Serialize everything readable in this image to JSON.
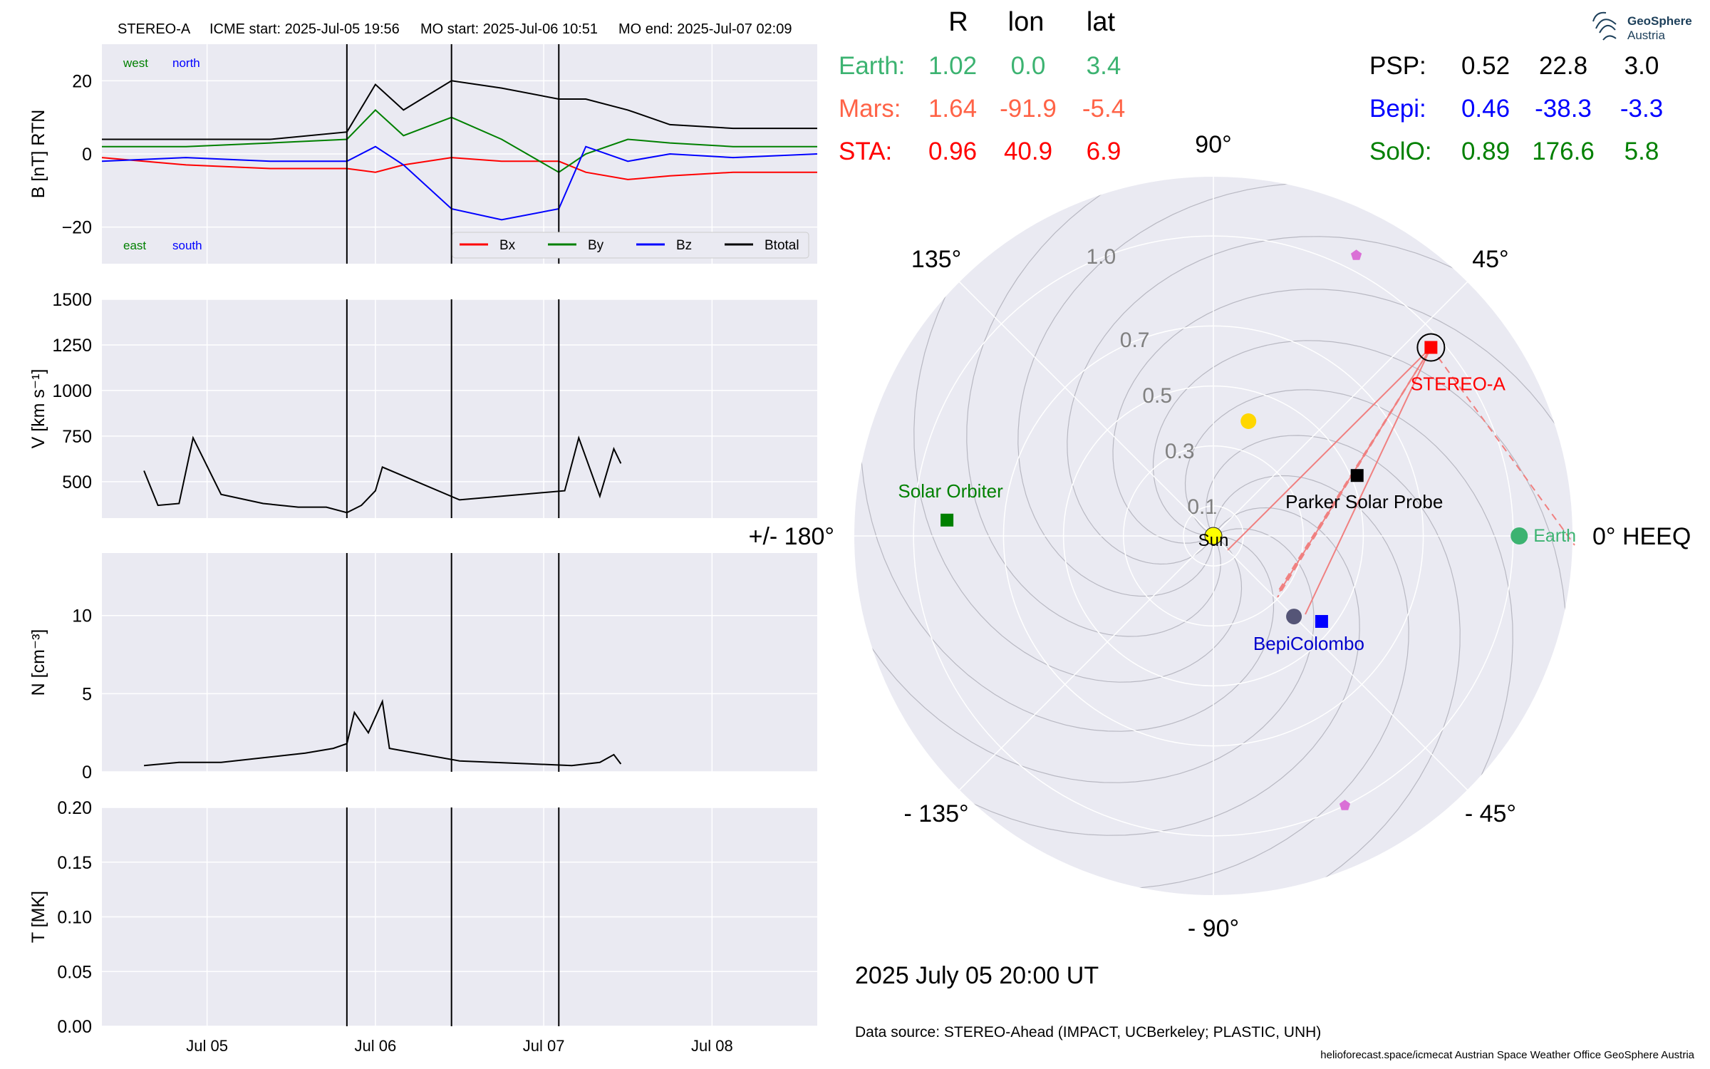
{
  "header": {
    "spacecraft": "STEREO-A",
    "icme_start": "ICME start: 2025-Jul-05 19:56",
    "mo_start": "MO start: 2025-Jul-06 10:51",
    "mo_end": "MO end: 2025-Jul-07 02:09"
  },
  "logo": {
    "line1": "GeoSphere",
    "line2": "Austria"
  },
  "footer": {
    "datetime": "2025 July 05  20:00 UT",
    "source": "Data source: STEREO-Ahead (IMPACT, UCBerkeley; PLASTIC, UNH)",
    "credits": "helioforecast.space/icmecat   Austrian Space Weather Office   GeoSphere Austria"
  },
  "positions": {
    "headers": [
      "R",
      "lon",
      "lat"
    ],
    "bodies": [
      {
        "label": "Earth:",
        "R": "1.02",
        "lon": "0.0",
        "lat": "3.4",
        "color": "#3cb371"
      },
      {
        "label": "Mars:",
        "R": "1.64",
        "lon": "-91.9",
        "lat": "-5.4",
        "color": "#ff6347"
      },
      {
        "label": "STA:",
        "R": "0.96",
        "lon": "40.9",
        "lat": "6.9",
        "color": "#ff0000"
      },
      {
        "label": "PSP:",
        "R": "0.52",
        "lon": "22.8",
        "lat": "3.0",
        "color": "#000000"
      },
      {
        "label": "Bepi:",
        "R": "0.46",
        "lon": "-38.3",
        "lat": "-3.3",
        "color": "#0000ff"
      },
      {
        "label": "SolO:",
        "R": "0.89",
        "lon": "176.6",
        "lat": "5.8",
        "color": "#008000"
      }
    ]
  },
  "chart_data": [
    {
      "type": "line",
      "panel": "magnetic field",
      "ylabel": "B [nT] RTN",
      "ylim": [
        -30,
        30
      ],
      "yticks": [
        -20,
        0,
        20
      ],
      "xlim": [
        "2025-07-04 09:00",
        "2025-07-08 15:00"
      ],
      "xticks": [
        "Jul 05",
        "Jul 06",
        "Jul 07",
        "Jul 08"
      ],
      "vlines": [
        "2025-07-05 19:56",
        "2025-07-06 10:51",
        "2025-07-07 02:09"
      ],
      "grid": true,
      "legend_position": "lower-right",
      "corner_labels": {
        "west": "west",
        "north": "north",
        "east": "east",
        "south": "south"
      },
      "series": [
        {
          "name": "Bx",
          "color": "#ff0000",
          "x": [
            "07-04 09:00",
            "07-04 21:00",
            "07-05 09:00",
            "07-05 19:56",
            "07-06 00:00",
            "07-06 04:00",
            "07-06 10:51",
            "07-06 18:00",
            "07-07 02:09",
            "07-07 06:00",
            "07-07 12:00",
            "07-07 18:00",
            "07-08 03:00",
            "07-08 15:00"
          ],
          "y": [
            -1,
            -3,
            -4,
            -4,
            -5,
            -3,
            -1,
            -2,
            -2,
            -5,
            -7,
            -6,
            -5,
            -5
          ]
        },
        {
          "name": "By",
          "color": "#008000",
          "x": [
            "07-04 09:00",
            "07-04 21:00",
            "07-05 09:00",
            "07-05 19:56",
            "07-06 00:00",
            "07-06 04:00",
            "07-06 10:51",
            "07-06 18:00",
            "07-07 02:09",
            "07-07 06:00",
            "07-07 12:00",
            "07-07 18:00",
            "07-08 03:00",
            "07-08 15:00"
          ],
          "y": [
            2,
            2,
            3,
            4,
            12,
            5,
            10,
            4,
            -5,
            0,
            4,
            3,
            2,
            2
          ]
        },
        {
          "name": "Bz",
          "color": "#0000ff",
          "x": [
            "07-04 09:00",
            "07-04 21:00",
            "07-05 09:00",
            "07-05 19:56",
            "07-06 00:00",
            "07-06 04:00",
            "07-06 10:51",
            "07-06 18:00",
            "07-07 02:09",
            "07-07 06:00",
            "07-07 12:00",
            "07-07 18:00",
            "07-08 03:00",
            "07-08 15:00"
          ],
          "y": [
            -2,
            -1,
            -2,
            -2,
            2,
            -3,
            -15,
            -18,
            -15,
            2,
            -2,
            0,
            -1,
            0
          ]
        },
        {
          "name": "Btotal",
          "color": "#000000",
          "x": [
            "07-04 09:00",
            "07-04 21:00",
            "07-05 09:00",
            "07-05 19:56",
            "07-06 00:00",
            "07-06 04:00",
            "07-06 10:51",
            "07-06 18:00",
            "07-07 02:09",
            "07-07 06:00",
            "07-07 12:00",
            "07-07 18:00",
            "07-08 03:00",
            "07-08 15:00"
          ],
          "y": [
            4,
            4,
            4,
            6,
            19,
            12,
            20,
            18,
            15,
            15,
            12,
            8,
            7,
            7
          ]
        }
      ]
    },
    {
      "type": "line",
      "panel": "speed",
      "ylabel": "V [km s^-1]",
      "ylim": [
        300,
        1500
      ],
      "yticks": [
        500,
        750,
        1000,
        1250,
        1500
      ],
      "xticks": [
        "Jul 05",
        "Jul 06",
        "Jul 07",
        "Jul 08"
      ],
      "vlines": [
        "2025-07-05 19:56",
        "2025-07-06 10:51",
        "2025-07-07 02:09"
      ],
      "grid": true,
      "series": [
        {
          "name": "V",
          "color": "#000000",
          "x": [
            "07-04 15:00",
            "07-04 17:00",
            "07-04 20:00",
            "07-04 22:00",
            "07-05 02:00",
            "07-05 08:00",
            "07-05 13:00",
            "07-05 17:00",
            "07-05 19:56",
            "07-05 22:00",
            "07-06 00:00",
            "07-06 01:00",
            "07-06 12:00",
            "07-07 03:00",
            "07-07 05:00",
            "07-07 08:00",
            "07-07 10:00",
            "07-07 11:00"
          ],
          "y": [
            560,
            370,
            380,
            740,
            430,
            380,
            360,
            360,
            330,
            370,
            450,
            580,
            400,
            450,
            740,
            420,
            680,
            600
          ]
        }
      ]
    },
    {
      "type": "line",
      "panel": "density",
      "ylabel": "N [cm^-3]",
      "ylim": [
        0,
        14
      ],
      "yticks": [
        0,
        5,
        10
      ],
      "xticks": [
        "Jul 05",
        "Jul 06",
        "Jul 07",
        "Jul 08"
      ],
      "vlines": [
        "2025-07-05 19:56",
        "2025-07-06 10:51",
        "2025-07-07 02:09"
      ],
      "grid": true,
      "series": [
        {
          "name": "N",
          "color": "#000000",
          "x": [
            "07-04 15:00",
            "07-04 20:00",
            "07-05 02:00",
            "07-05 08:00",
            "07-05 14:00",
            "07-05 18:00",
            "07-05 19:56",
            "07-05 21:00",
            "07-05 23:00",
            "07-06 01:00",
            "07-06 02:00",
            "07-06 12:00",
            "07-07 04:00",
            "07-07 08:00",
            "07-07 10:00",
            "07-07 11:00"
          ],
          "y": [
            0.4,
            0.6,
            0.6,
            0.9,
            1.2,
            1.5,
            1.8,
            3.8,
            2.5,
            4.5,
            1.5,
            0.7,
            0.4,
            0.6,
            1.1,
            0.5
          ]
        }
      ]
    },
    {
      "type": "line",
      "panel": "temperature",
      "ylabel": "T [MK]",
      "ylim": [
        0,
        0.2
      ],
      "yticks": [
        0.0,
        0.05,
        0.1,
        0.15,
        0.2
      ],
      "xticks": [
        "Jul 05",
        "Jul 06",
        "Jul 07",
        "Jul 08"
      ],
      "vlines": [
        "2025-07-05 19:56",
        "2025-07-06 10:51",
        "2025-07-07 02:09"
      ],
      "grid": true,
      "series": []
    },
    {
      "type": "scatter",
      "panel": "polar position plot",
      "projection": "polar",
      "rlim": [
        0,
        1.2
      ],
      "r_ticks": [
        0.1,
        0.3,
        0.5,
        0.7,
        1.0
      ],
      "angle_labels": [
        {
          "deg": 0,
          "label": "0° HEEQ"
        },
        {
          "deg": 45,
          "label": "45°"
        },
        {
          "deg": 90,
          "label": "90°"
        },
        {
          "deg": 135,
          "label": "135°"
        },
        {
          "deg": 180,
          "label": "+/- 180°"
        },
        {
          "deg": -135,
          "label": "- 135°"
        },
        {
          "deg": -90,
          "label": "- 90°"
        },
        {
          "deg": -45,
          "label": "- 45°"
        }
      ],
      "points": [
        {
          "name": "Sun",
          "lon": 0,
          "r": 0,
          "color": "#ffff00",
          "marker": "circle"
        },
        {
          "name": "Earth",
          "lon": 0.0,
          "r": 1.02,
          "color": "#3cb371",
          "marker": "circle"
        },
        {
          "name": "STEREO-A",
          "lon": 40.9,
          "r": 0.96,
          "color": "#ff0000",
          "marker": "square"
        },
        {
          "name": "Parker Solar Probe",
          "lon": 22.8,
          "r": 0.52,
          "color": "#000000",
          "marker": "square"
        },
        {
          "name": "BepiColombo",
          "lon": -38.3,
          "r": 0.46,
          "color": "#0000ff",
          "marker": "square"
        },
        {
          "name": "Solar Orbiter",
          "lon": 176.6,
          "r": 0.89,
          "color": "#008000",
          "marker": "square"
        },
        {
          "name": "",
          "lon": 73,
          "r": 0.4,
          "color": "#ffd700",
          "marker": "circle"
        },
        {
          "name": "",
          "lon": -45,
          "r": 0.38,
          "color": "#555577",
          "marker": "circle"
        },
        {
          "name": "",
          "lon": 63,
          "r": 1.05,
          "color": "#da70d6",
          "marker": "pentagon"
        },
        {
          "name": "",
          "lon": -64,
          "r": 1.0,
          "color": "#da70d6",
          "marker": "pentagon"
        }
      ]
    }
  ]
}
